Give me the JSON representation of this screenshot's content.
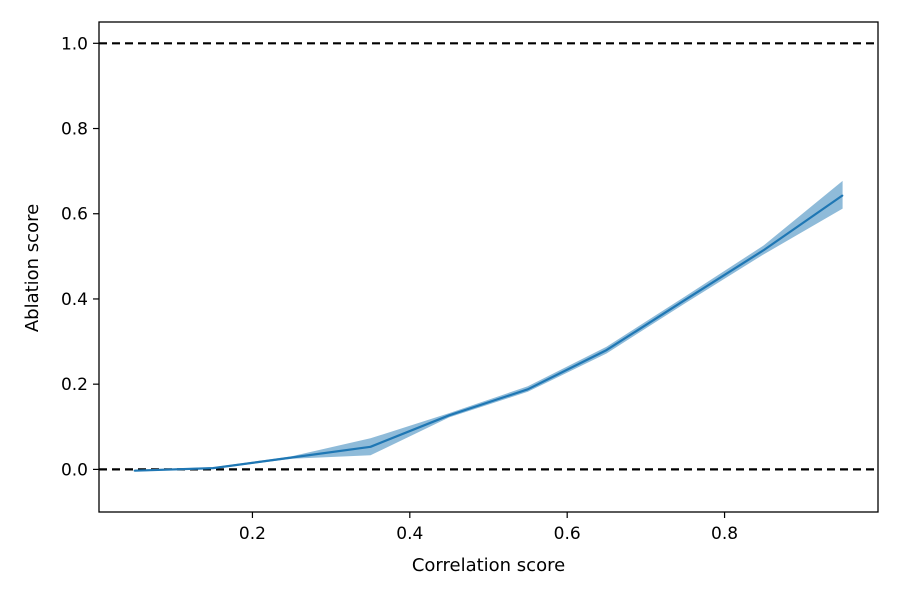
{
  "colors": {
    "line": "#1f77b4",
    "band": "#1f77b4",
    "reference": "#000000",
    "frame": "#000000"
  },
  "chart_data": {
    "type": "line",
    "title": "",
    "xlabel": "Correlation score",
    "ylabel": "Ablation score",
    "xlim": [
      0.005,
      0.995
    ],
    "ylim": [
      -0.1,
      1.05
    ],
    "grid": false,
    "x_ticks": [
      "0.2",
      "0.4",
      "0.6",
      "0.8"
    ],
    "y_ticks": [
      "0.0",
      "0.2",
      "0.4",
      "0.6",
      "0.8",
      "1.0"
    ],
    "reference_lines": [
      {
        "orientation": "horizontal",
        "y": 1.0,
        "style": "dashed"
      },
      {
        "orientation": "horizontal",
        "y": 0.0,
        "style": "dashed"
      }
    ],
    "series": [
      {
        "x": [
          0.05,
          0.15,
          0.25,
          0.35,
          0.45,
          0.55,
          0.65,
          0.75,
          0.85,
          0.95
        ],
        "y": [
          -0.003,
          0.003,
          0.028,
          0.053,
          0.127,
          0.188,
          0.28,
          0.398,
          0.515,
          0.643
        ],
        "lower": [
          -0.005,
          0.001,
          0.025,
          0.033,
          0.122,
          0.182,
          0.272,
          0.39,
          0.505,
          0.612
        ],
        "upper": [
          -0.001,
          0.005,
          0.031,
          0.073,
          0.132,
          0.195,
          0.288,
          0.406,
          0.526,
          0.677
        ]
      }
    ]
  }
}
